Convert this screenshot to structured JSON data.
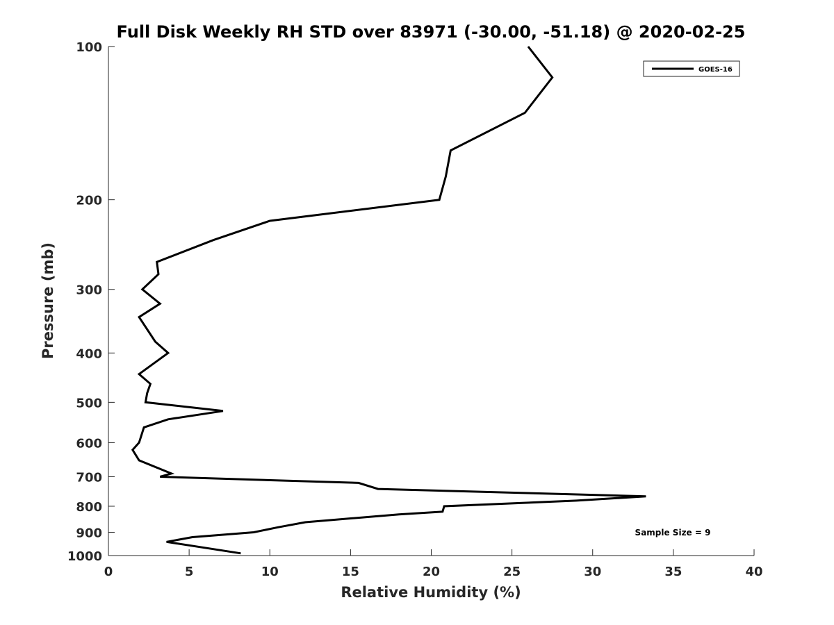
{
  "chart_data": {
    "type": "line",
    "title": "Full Disk Weekly RH STD over 83971 (-30.00, -51.18) @ 2020-02-25",
    "xlabel": "Relative Humidity (%)",
    "ylabel": "Pressure (mb)",
    "xlim": [
      0,
      40
    ],
    "ylim": [
      100,
      1000
    ],
    "y_scale": "log",
    "y_reversed": true,
    "xticks": [
      0,
      5,
      10,
      15,
      20,
      25,
      30,
      35,
      40
    ],
    "yticks": [
      100,
      200,
      300,
      400,
      500,
      600,
      700,
      800,
      900,
      1000
    ],
    "grid": false,
    "legend_position": "top-right",
    "series": [
      {
        "name": "GOES-16",
        "color": "#000000",
        "points": [
          {
            "x": 26.0,
            "y": 100
          },
          {
            "x": 27.5,
            "y": 115
          },
          {
            "x": 25.8,
            "y": 135
          },
          {
            "x": 21.2,
            "y": 160
          },
          {
            "x": 20.9,
            "y": 180
          },
          {
            "x": 20.5,
            "y": 200
          },
          {
            "x": 10.0,
            "y": 220
          },
          {
            "x": 6.5,
            "y": 240
          },
          {
            "x": 3.0,
            "y": 265
          },
          {
            "x": 3.1,
            "y": 280
          },
          {
            "x": 2.1,
            "y": 300
          },
          {
            "x": 3.2,
            "y": 320
          },
          {
            "x": 1.9,
            "y": 340
          },
          {
            "x": 2.9,
            "y": 380
          },
          {
            "x": 3.7,
            "y": 400
          },
          {
            "x": 1.9,
            "y": 440
          },
          {
            "x": 2.6,
            "y": 460
          },
          {
            "x": 2.4,
            "y": 480
          },
          {
            "x": 2.3,
            "y": 500
          },
          {
            "x": 7.1,
            "y": 520
          },
          {
            "x": 3.7,
            "y": 540
          },
          {
            "x": 2.2,
            "y": 560
          },
          {
            "x": 1.9,
            "y": 600
          },
          {
            "x": 1.5,
            "y": 620
          },
          {
            "x": 1.9,
            "y": 650
          },
          {
            "x": 3.9,
            "y": 690
          },
          {
            "x": 3.2,
            "y": 700
          },
          {
            "x": 15.5,
            "y": 720
          },
          {
            "x": 16.7,
            "y": 740
          },
          {
            "x": 33.3,
            "y": 765
          },
          {
            "x": 29.0,
            "y": 780
          },
          {
            "x": 20.8,
            "y": 800
          },
          {
            "x": 20.7,
            "y": 820
          },
          {
            "x": 18.0,
            "y": 830
          },
          {
            "x": 12.2,
            "y": 860
          },
          {
            "x": 10.5,
            "y": 880
          },
          {
            "x": 9.0,
            "y": 900
          },
          {
            "x": 5.2,
            "y": 920
          },
          {
            "x": 3.6,
            "y": 940
          },
          {
            "x": 8.2,
            "y": 990
          }
        ]
      }
    ],
    "annotation": "Sample Size = 9"
  }
}
